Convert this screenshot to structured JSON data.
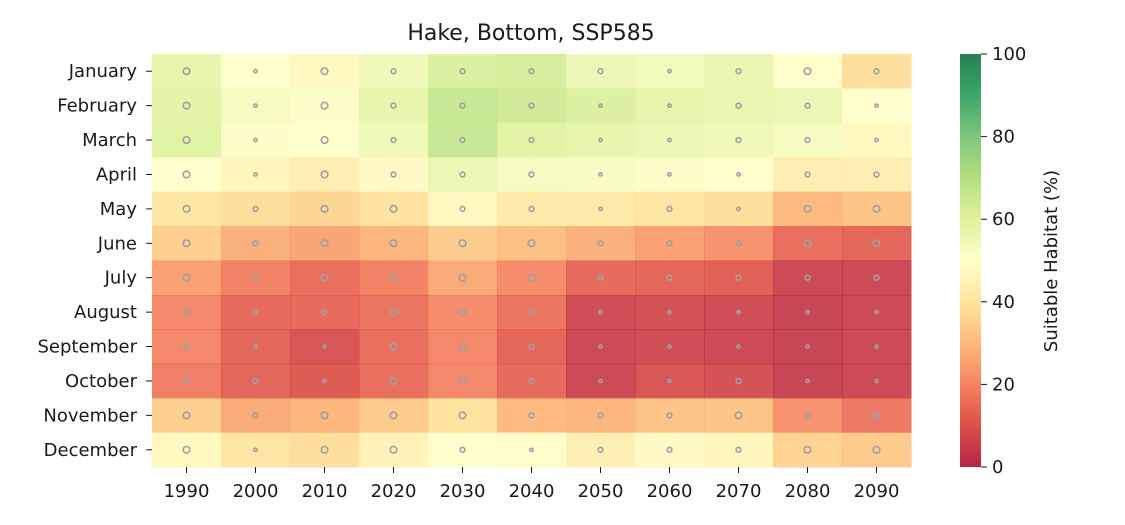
{
  "chart_data": {
    "type": "heatmap",
    "title": "Hake, Bottom, SSP585",
    "xlabel": "",
    "ylabel": "",
    "x": [
      "1990",
      "2000",
      "2010",
      "2020",
      "2030",
      "2040",
      "2050",
      "2060",
      "2070",
      "2080",
      "2090"
    ],
    "y": [
      "January",
      "February",
      "March",
      "April",
      "May",
      "June",
      "July",
      "August",
      "September",
      "October",
      "November",
      "December"
    ],
    "values": [
      [
        58,
        50,
        47,
        55,
        61,
        63,
        56,
        54,
        57,
        49,
        38
      ],
      [
        59,
        53,
        51,
        58,
        66,
        64,
        61,
        58,
        57,
        56,
        50
      ],
      [
        60,
        51,
        50,
        55,
        66,
        60,
        58,
        56,
        55,
        53,
        47
      ],
      [
        50,
        46,
        43,
        48,
        56,
        53,
        52,
        51,
        50,
        43,
        43
      ],
      [
        40,
        38,
        36,
        39,
        47,
        42,
        41,
        40,
        38,
        29,
        31
      ],
      [
        34,
        27,
        25,
        28,
        33,
        30,
        27,
        24,
        21,
        14,
        12
      ],
      [
        24,
        18,
        14,
        18,
        26,
        20,
        13,
        12,
        11,
        5,
        5
      ],
      [
        19,
        13,
        13,
        15,
        20,
        15,
        6,
        7,
        6,
        4,
        5
      ],
      [
        19,
        12,
        8,
        14,
        19,
        12,
        5,
        6,
        5,
        4,
        5
      ],
      [
        17,
        12,
        10,
        14,
        19,
        13,
        5,
        8,
        7,
        4,
        5
      ],
      [
        34,
        26,
        28,
        33,
        39,
        29,
        28,
        31,
        31,
        21,
        16
      ],
      [
        47,
        40,
        38,
        45,
        50,
        49,
        44,
        48,
        46,
        35,
        33
      ]
    ],
    "dot_sizes": [
      [
        3,
        1,
        3,
        2,
        2,
        2,
        2,
        1,
        2,
        3,
        2
      ],
      [
        3,
        1,
        3,
        2,
        2,
        2,
        1,
        1,
        2,
        2,
        1
      ],
      [
        3,
        1,
        3,
        2,
        2,
        2,
        1,
        1,
        2,
        2,
        1
      ],
      [
        3,
        1,
        3,
        2,
        2,
        2,
        1,
        1,
        1,
        2,
        2
      ],
      [
        3,
        2,
        3,
        3,
        2,
        2,
        1,
        2,
        1,
        3,
        3
      ],
      [
        3,
        2,
        3,
        3,
        3,
        3,
        2,
        2,
        2,
        3,
        3
      ],
      [
        3,
        2,
        3,
        3,
        3,
        3,
        2,
        2,
        2,
        2,
        2
      ],
      [
        2,
        1,
        2,
        3,
        3,
        2,
        1,
        1,
        1,
        1,
        1
      ],
      [
        2,
        1,
        1,
        3,
        3,
        2,
        1,
        1,
        1,
        1,
        1
      ],
      [
        2,
        2,
        1,
        3,
        3,
        2,
        1,
        1,
        2,
        1,
        1
      ],
      [
        3,
        2,
        3,
        3,
        3,
        2,
        2,
        2,
        3,
        2,
        3
      ],
      [
        3,
        1,
        3,
        3,
        2,
        1,
        2,
        2,
        2,
        3,
        3
      ]
    ],
    "colorbar": {
      "label": "Suitable Habitat (%)",
      "range": [
        0,
        100
      ],
      "ticks": [
        "0",
        "20",
        "40",
        "60",
        "80",
        "100"
      ],
      "colormap": [
        "#a50026",
        "#d73027",
        "#f46d43",
        "#fdae61",
        "#fee08b",
        "#ffffbf",
        "#d9ef8b",
        "#a6d96a",
        "#66bd63",
        "#1a9850",
        "#006837"
      ]
    },
    "grid": false,
    "dot_color": "#a0a0a0"
  }
}
